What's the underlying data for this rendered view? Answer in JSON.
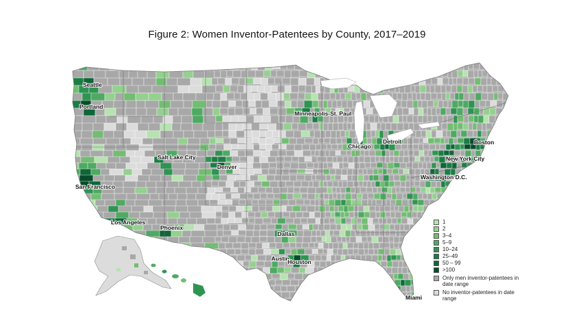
{
  "title": "Figure 2: Women Inventor-Patentees by County, 2017–2019",
  "colors": {
    "gray_only_men": "#a8a8a8",
    "light_no_inventors": "#dcdcdc",
    "border": "#ffffff",
    "map_border": "#6e6e6e"
  },
  "legend": {
    "items": [
      {
        "label": "1",
        "color": "#b6e3b0"
      },
      {
        "label": "2",
        "color": "#94d08f"
      },
      {
        "label": "3–4",
        "color": "#73bd73"
      },
      {
        "label": "5–9",
        "color": "#4fa963"
      },
      {
        "label": "10–24",
        "color": "#2f9452"
      },
      {
        "label": "25–49",
        "color": "#1b7d45"
      },
      {
        "label": "50 – 99",
        "color": "#0f6638"
      },
      {
        "label": ">100",
        "color": "#074d2a"
      },
      {
        "label": "Only men inventor-patentees in date range",
        "color": "#a8a8a8"
      },
      {
        "label": "No inventor-patentees in date range",
        "color": "#dcdcdc"
      }
    ]
  },
  "cities": [
    {
      "name": "Seattle"
    },
    {
      "name": "Portland"
    },
    {
      "name": "San Francisco"
    },
    {
      "name": "Los Angeles"
    },
    {
      "name": "Salt Lake City"
    },
    {
      "name": "Phoenix"
    },
    {
      "name": "Denver"
    },
    {
      "name": "Minneapolis-St. Paul"
    },
    {
      "name": "Dallas"
    },
    {
      "name": "Austin"
    },
    {
      "name": "Houston"
    },
    {
      "name": "Chicago"
    },
    {
      "name": "Detroit"
    },
    {
      "name": "Boston"
    },
    {
      "name": "New York City"
    },
    {
      "name": "Washington D.C."
    },
    {
      "name": "Miami"
    }
  ]
}
